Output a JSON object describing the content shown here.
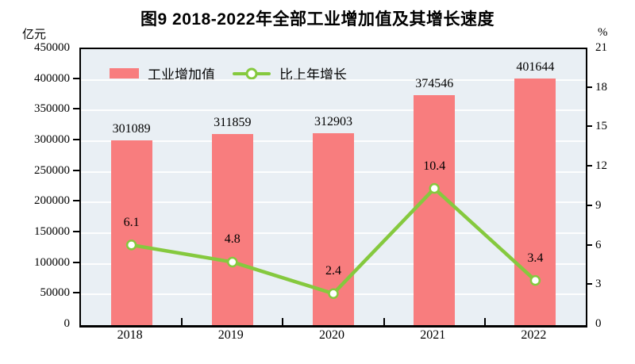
{
  "title": "图9  2018-2022年全部工业增加值及其增长速度",
  "legend": {
    "bar_label": "工业增加值",
    "line_label": "比上年增长"
  },
  "colors": {
    "bar": "#F87D7E",
    "line": "#85C93E",
    "marker_fill": "#FFFFFF",
    "plot_background": "#E9EFF4",
    "gridline": "#FFFFFF",
    "axis": "#000000",
    "text": "#000000"
  },
  "chart_data": {
    "type": "bar",
    "subtype": "bar+line combo, dual axis",
    "title": "图9  2018-2022年全部工业增加值及其增长速度",
    "categories": [
      "2018",
      "2019",
      "2020",
      "2021",
      "2022"
    ],
    "series": [
      {
        "name": "工业增加值",
        "type": "bar",
        "axis": "left",
        "values": [
          301089,
          311859,
          312903,
          374546,
          401644
        ],
        "labels": [
          "301089",
          "311859",
          "312903",
          "374546",
          "401644"
        ]
      },
      {
        "name": "比上年增长",
        "type": "line",
        "axis": "right",
        "values": [
          6.1,
          4.8,
          2.4,
          10.4,
          3.4
        ],
        "labels": [
          "6.1",
          "4.8",
          "2.4",
          "10.4",
          "3.4"
        ]
      }
    ],
    "left_axis": {
      "unit": "亿元",
      "min": 0,
      "max": 450000,
      "tick_step": 50000,
      "tick_labels": [
        "0",
        "50000",
        "100000",
        "150000",
        "200000",
        "250000",
        "300000",
        "350000",
        "400000",
        "450000"
      ]
    },
    "right_axis": {
      "unit": "%",
      "min": 0,
      "max": 21,
      "tick_step": 3,
      "tick_labels": [
        "0",
        "3",
        "6",
        "9",
        "12",
        "15",
        "18",
        "21"
      ]
    },
    "grid": true,
    "legend_position": "top-left-inside"
  }
}
